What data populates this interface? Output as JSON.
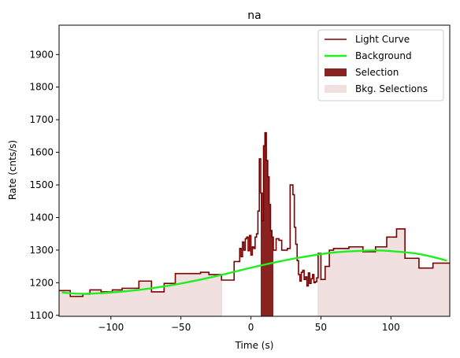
{
  "chart_data": {
    "type": "line",
    "title": "na",
    "xlabel": "Time (s)",
    "ylabel": "Rate (cnts/s)",
    "xlim": [
      -137,
      142
    ],
    "ylim": [
      1097,
      1990
    ],
    "xticks": [
      -100,
      -50,
      0,
      50,
      100
    ],
    "yticks": [
      1100,
      1200,
      1300,
      1400,
      1500,
      1600,
      1700,
      1800,
      1900
    ],
    "grid": false,
    "legend_position": "top-right",
    "colors": {
      "light_curve": "#7b0000",
      "background": "#1fef1f",
      "selection": "#8b2222",
      "bkg_selection": "#f0e0e0",
      "bkg_selection_edge": "#e8d2d2"
    },
    "legend": [
      {
        "label": "Light Curve",
        "kind": "line",
        "color": "#7b0000"
      },
      {
        "label": "Background",
        "kind": "line",
        "color": "#1fef1f"
      },
      {
        "label": "Selection",
        "kind": "patch",
        "color": "#8b2222"
      },
      {
        "label": "Bkg. Selections",
        "kind": "patch",
        "color": "#f0e0e0"
      }
    ],
    "selection": {
      "range": [
        7,
        16
      ]
    },
    "bkg_selections": [
      {
        "range": [
          -137,
          -21
        ]
      },
      {
        "range": [
          48,
          142
        ]
      }
    ],
    "background": {
      "x": [
        -135,
        -120,
        -100,
        -80,
        -60,
        -40,
        -20,
        0,
        20,
        40,
        60,
        80,
        90,
        100,
        120,
        140
      ],
      "y": [
        1170,
        1166,
        1170,
        1178,
        1190,
        1206,
        1225,
        1246,
        1265,
        1281,
        1293,
        1298,
        1299,
        1297,
        1288,
        1268
      ]
    },
    "light_curve": {
      "edges": [
        -137,
        -129,
        -120,
        -115,
        -107,
        -99,
        -92,
        -80,
        -71,
        -62,
        -54,
        -46,
        -36,
        -30,
        -21,
        -12,
        -8,
        -7,
        -6,
        -5,
        -4,
        -3,
        -2,
        -1,
        0,
        1,
        2,
        3,
        4,
        5,
        6,
        7,
        8,
        9,
        10,
        11,
        12,
        13,
        14,
        15,
        16,
        18,
        20,
        22,
        24,
        26,
        28,
        30,
        31,
        32,
        33,
        34,
        35,
        36,
        37,
        38,
        39,
        40,
        41,
        42,
        43,
        44,
        45,
        46,
        47,
        48,
        50,
        53,
        56,
        59,
        64,
        70,
        80,
        89,
        97,
        104,
        110,
        120,
        130,
        137,
        142
      ],
      "values": [
        1176,
        1158,
        1165,
        1178,
        1172,
        1178,
        1183,
        1205,
        1172,
        1198,
        1228,
        1228,
        1232,
        1225,
        1208,
        1265,
        1305,
        1280,
        1325,
        1300,
        1335,
        1340,
        1298,
        1345,
        1285,
        1310,
        1305,
        1340,
        1350,
        1420,
        1580,
        1475,
        1390,
        1620,
        1660,
        1575,
        1525,
        1440,
        1360,
        1340,
        1300,
        1335,
        1330,
        1300,
        1300,
        1305,
        1500,
        1470,
        1370,
        1318,
        1268,
        1225,
        1205,
        1232,
        1238,
        1210,
        1218,
        1190,
        1230,
        1198,
        1212,
        1225,
        1200,
        1203,
        1215,
        1290,
        1210,
        1250,
        1300,
        1305,
        1305,
        1310,
        1295,
        1310,
        1340,
        1365,
        1275,
        1245,
        1260,
        1260
      ]
    }
  }
}
